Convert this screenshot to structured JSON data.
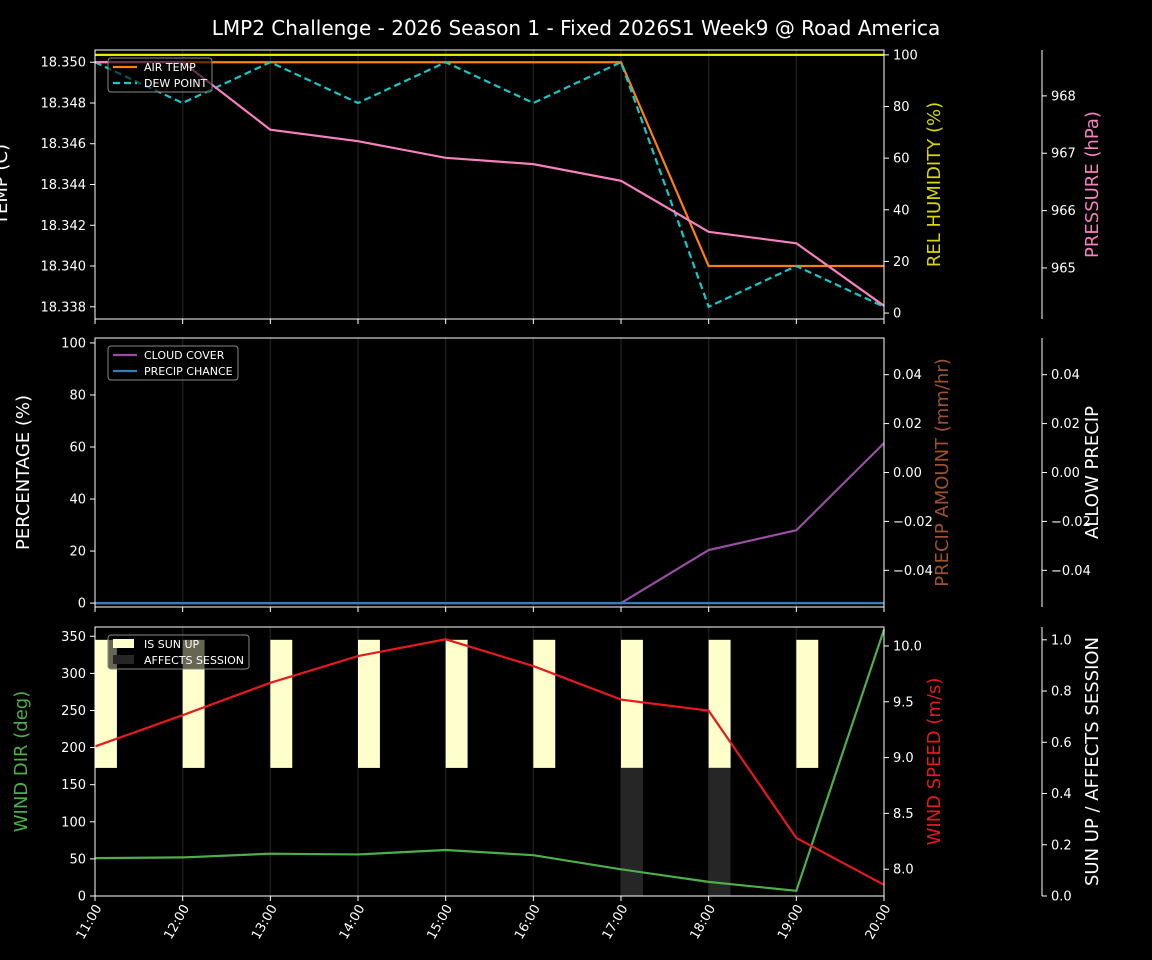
{
  "title": "LMP2 Challenge  - 2026 Season 1 - Fixed 2026S1 Week9 @ Road America",
  "chart_data": [
    {
      "type": "line",
      "x": [
        "11:00",
        "12:00",
        "13:00",
        "14:00",
        "15:00",
        "16:00",
        "17:00",
        "18:00",
        "19:00",
        "20:00"
      ],
      "axes": [
        {
          "label": "TEMP (C)",
          "color": "#ffffff",
          "ylim": [
            18.3374,
            18.3506
          ],
          "ticks": [
            "18.338",
            "18.340",
            "18.342",
            "18.344",
            "18.346",
            "18.348",
            "18.350"
          ]
        },
        {
          "label": "REL HUMIDITY (%)",
          "color": "#d8d800",
          "ylim": [
            -2.3,
            101.9
          ],
          "ticks": [
            "0",
            "20",
            "40",
            "60",
            "80",
            "100"
          ]
        },
        {
          "label": "PRESSURE (hPa)",
          "color": "#f781bf",
          "ylim": [
            964.11,
            968.8
          ],
          "ticks": [
            "965",
            "966",
            "967",
            "968"
          ]
        }
      ],
      "series": [
        {
          "name": "AIR TEMP",
          "axis": 0,
          "color": "#ff7f0e",
          "dash": false,
          "values": [
            18.35,
            18.35,
            18.35,
            18.35,
            18.35,
            18.35,
            18.35,
            18.34,
            18.34,
            18.34
          ]
        },
        {
          "name": "DEW POINT",
          "axis": 0,
          "color": "#17c8c8",
          "dash": true,
          "values": [
            18.35,
            18.348,
            18.35,
            18.348,
            18.35,
            18.348,
            18.35,
            18.338,
            18.34,
            18.338
          ]
        },
        {
          "axis": 1,
          "color": "#e5e500",
          "dash": false,
          "values": [
            100,
            100,
            100,
            100,
            100,
            100,
            100,
            100,
            100,
            100
          ]
        },
        {
          "axis": 2,
          "color": "#f781bf",
          "dash": false,
          "values": [
            968.59,
            968.59,
            967.41,
            967.21,
            966.92,
            966.81,
            966.52,
            965.63,
            965.43,
            964.34
          ]
        }
      ],
      "legend": "upper-left"
    },
    {
      "type": "line",
      "x": [
        "11:00",
        "12:00",
        "13:00",
        "14:00",
        "15:00",
        "16:00",
        "17:00",
        "18:00",
        "19:00",
        "20:00"
      ],
      "axes": [
        {
          "label": "PERCENTAGE (%)",
          "color": "#ffffff",
          "ylim": [
            -1.5,
            101.9
          ],
          "ticks": [
            "0",
            "20",
            "40",
            "60",
            "80",
            "100"
          ]
        },
        {
          "label": "PRECIP AMOUNT (mm/hr)",
          "color": "#a0522d",
          "ylim": [
            -0.055,
            0.055
          ],
          "ticks": [
            "−0.04",
            "−0.02",
            "0.00",
            "0.02",
            "0.04"
          ]
        },
        {
          "label": "ALLOW PRECIP",
          "color": "#ffffff",
          "ylim": [
            -0.055,
            0.055
          ],
          "ticks": [
            "−0.04",
            "−0.02",
            "0.00",
            "0.02",
            "0.04"
          ]
        }
      ],
      "series": [
        {
          "name": "CLOUD COVER",
          "axis": 0,
          "color": "#984ea3",
          "dash": false,
          "values": [
            0,
            0,
            0,
            0,
            0,
            0,
            0,
            20.4,
            28,
            61.5
          ]
        },
        {
          "name": "PRECIP CHANCE",
          "axis": 0,
          "color": "#377eb8",
          "dash": false,
          "values": [
            0,
            0,
            0,
            0,
            0,
            0,
            0,
            0,
            0,
            0
          ]
        }
      ],
      "legend": "upper-left"
    },
    {
      "type": "line",
      "x": [
        "11:00",
        "12:00",
        "13:00",
        "14:00",
        "15:00",
        "16:00",
        "17:00",
        "18:00",
        "19:00",
        "20:00"
      ],
      "axes": [
        {
          "label": "WIND DIR (deg)",
          "color": "#4daf4a",
          "ylim": [
            0,
            362.5
          ],
          "ticks": [
            "0",
            "50",
            "100",
            "150",
            "200",
            "250",
            "300",
            "350"
          ]
        },
        {
          "label": "WIND SPEED (m/s)",
          "color": "#e41a1c",
          "ylim": [
            7.76,
            10.17
          ],
          "ticks": [
            "8.0",
            "8.5",
            "9.0",
            "9.5",
            "10.0"
          ]
        },
        {
          "label": "SUN UP / AFFECTS SESSION",
          "color": "#ffffff",
          "ylim": [
            0,
            1.05
          ],
          "ticks": [
            "0.0",
            "0.2",
            "0.4",
            "0.6",
            "0.8",
            "1.0"
          ]
        }
      ],
      "series": [
        {
          "axis": 0,
          "color": "#4daf4a",
          "dash": false,
          "values": [
            51,
            52,
            57,
            56,
            62,
            55,
            36,
            19,
            7,
            359
          ]
        },
        {
          "axis": 1,
          "color": "#e41a1c",
          "dash": false,
          "values": [
            9.1,
            9.38,
            9.67,
            9.91,
            10.06,
            9.82,
            9.52,
            9.42,
            8.28,
            7.86
          ]
        }
      ],
      "bars": [
        {
          "name": "IS SUN UP",
          "color": "#ffffcc",
          "values": [
            1,
            1,
            1,
            1,
            1,
            1,
            1,
            1,
            1,
            0
          ]
        },
        {
          "name": "AFFECTS SESSION",
          "color": "#262626",
          "values": [
            0,
            0,
            0,
            0,
            0,
            0,
            1,
            1,
            0,
            0
          ]
        }
      ],
      "legend": "upper-left"
    }
  ]
}
